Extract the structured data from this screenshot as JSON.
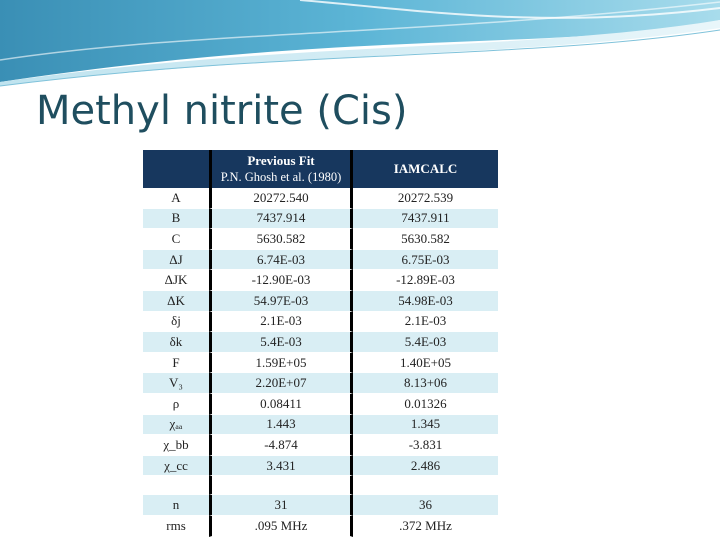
{
  "title": "Methyl nitrite (Cis)",
  "table": {
    "headers": [
      {
        "line1": "",
        "line2": ""
      },
      {
        "line1": "Previous Fit",
        "line2": "P.N. Ghosh et al. (1980)"
      },
      {
        "line1": "IAMCALC",
        "line2": ""
      }
    ],
    "rows": [
      {
        "param": "A",
        "prev": "20272.540",
        "calc": "20272.539"
      },
      {
        "param": "B",
        "prev": "7437.914",
        "calc": "7437.911"
      },
      {
        "param": "C",
        "prev": "5630.582",
        "calc": "5630.582"
      },
      {
        "param": "ΔJ",
        "prev": "6.74E-03",
        "calc": "6.75E-03"
      },
      {
        "param": "ΔJK",
        "prev": "-12.90E-03",
        "calc": "-12.89E-03"
      },
      {
        "param": "ΔK",
        "prev": "54.97E-03",
        "calc": "54.98E-03"
      },
      {
        "param": "δj",
        "prev": "2.1E-03",
        "calc": "2.1E-03"
      },
      {
        "param": "δk",
        "prev": "5.4E-03",
        "calc": "5.4E-03"
      },
      {
        "param": "F",
        "prev": "1.59E+05",
        "calc": "1.40E+05"
      },
      {
        "param": "V₃",
        "prev": "2.20E+07",
        "calc": "8.13+06"
      },
      {
        "param": "ρ",
        "prev": "0.08411",
        "calc": "0.01326"
      },
      {
        "param": "χₐₐ",
        "prev": "1.443",
        "calc": "1.345"
      },
      {
        "param": "χ_bb",
        "prev": "-4.874",
        "calc": "-3.831"
      },
      {
        "param": "χ_cc",
        "prev": "3.431",
        "calc": "2.486"
      },
      {
        "param": "",
        "prev": "",
        "calc": ""
      },
      {
        "param": "n",
        "prev": "31",
        "calc": "36"
      },
      {
        "param": "rms",
        "prev": ".095 MHz",
        "calc": ".372 MHz"
      }
    ]
  }
}
